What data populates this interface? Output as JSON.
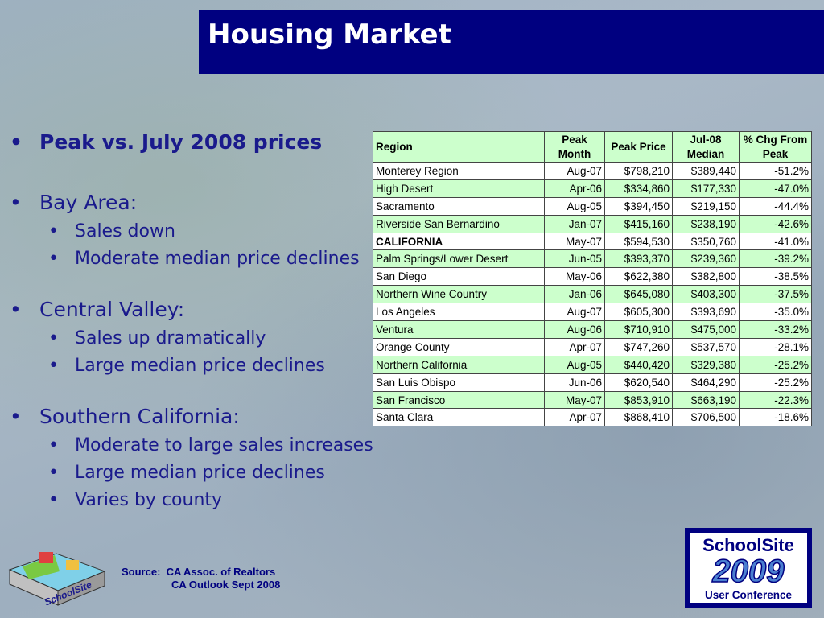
{
  "header": {
    "title": "Housing Market"
  },
  "bullets": {
    "b0": "Peak vs. July 2008 prices",
    "b1": "Bay Area:",
    "b1s": [
      "Sales down",
      "Moderate median price declines"
    ],
    "b2": "Central Valley:",
    "b2s": [
      "Sales up dramatically",
      "Large median price declines"
    ],
    "b3": "Southern California:",
    "b3s": [
      "Moderate to large sales increases",
      "Large median price declines",
      "Varies by county"
    ]
  },
  "table": {
    "headers": [
      "Region",
      "Peak Month",
      "Peak Price",
      "Jul-08 Median",
      "% Chg From Peak"
    ],
    "rows": [
      [
        "Monterey Region",
        "Aug-07",
        "$798,210",
        "$389,440",
        "-51.2%"
      ],
      [
        "High Desert",
        "Apr-06",
        "$334,860",
        "$177,330",
        "-47.0%"
      ],
      [
        "Sacramento",
        "Aug-05",
        "$394,450",
        "$219,150",
        "-44.4%"
      ],
      [
        "Riverside San Bernardino",
        "Jan-07",
        "$415,160",
        "$238,190",
        "-42.6%"
      ],
      [
        "CALIFORNIA",
        "May-07",
        "$594,530",
        "$350,760",
        "-41.0%"
      ],
      [
        "Palm Springs/Lower Desert",
        "Jun-05",
        "$393,370",
        "$239,360",
        "-39.2%"
      ],
      [
        "San Diego",
        "May-06",
        "$622,380",
        "$382,800",
        "-38.5%"
      ],
      [
        "Northern Wine Country",
        "Jan-06",
        "$645,080",
        "$403,300",
        "-37.5%"
      ],
      [
        "Los Angeles",
        "Aug-07",
        "$605,300",
        "$393,690",
        "-35.0%"
      ],
      [
        "Ventura",
        "Aug-06",
        "$710,910",
        "$475,000",
        "-33.2%"
      ],
      [
        "Orange County",
        "Apr-07",
        "$747,260",
        "$537,570",
        "-28.1%"
      ],
      [
        "Northern California",
        "Aug-05",
        "$440,420",
        "$329,380",
        "-25.2%"
      ],
      [
        "San Luis Obispo",
        "Jun-06",
        "$620,540",
        "$464,290",
        "-25.2%"
      ],
      [
        "San Francisco",
        "May-07",
        "$853,910",
        "$663,190",
        "-22.3%"
      ],
      [
        "Santa Clara",
        "Apr-07",
        "$868,410",
        "$706,500",
        "-18.6%"
      ]
    ]
  },
  "source": {
    "line1": "Source:  CA Assoc. of Realtors",
    "line2": "CA Outlook Sept 2008"
  },
  "logo_left": {
    "text": "SchoolSite"
  },
  "logo_right": {
    "line1": "SchoolSite",
    "line2": "2009",
    "line3": "User Conference"
  }
}
